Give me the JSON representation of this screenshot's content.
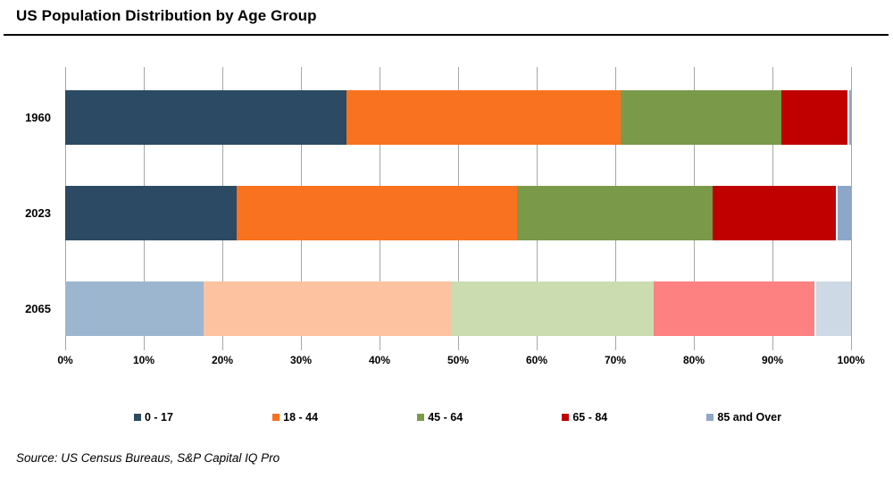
{
  "title": "US Population Distribution by Age Group",
  "source": "Source: US Census Bureaus, S&P Capital IQ Pro",
  "chart_data": {
    "type": "bar",
    "orientation": "horizontal",
    "stacked": true,
    "title": "US Population Distribution by Age Group",
    "categories": [
      "1960",
      "2023",
      "2065"
    ],
    "series": [
      {
        "name": "0 - 17",
        "values": [
          35.8,
          21.8,
          17.6
        ]
      },
      {
        "name": "18 - 44",
        "values": [
          34.9,
          35.7,
          31.5
        ]
      },
      {
        "name": "45 - 64",
        "values": [
          20.4,
          24.9,
          25.8
        ]
      },
      {
        "name": "65 - 84",
        "values": [
          8.4,
          15.7,
          20.4
        ]
      },
      {
        "name": "85 and Over",
        "values": [
          0.5,
          1.9,
          4.7
        ]
      }
    ],
    "legend": [
      "0 - 17",
      "18 - 44",
      "45 - 64",
      "65 - 84",
      "85 and Over"
    ],
    "legend_colors": [
      "#2C4A63",
      "#F8721F",
      "#7A9A4A",
      "#C00000",
      "#8DA7C9"
    ],
    "row_colors": [
      [
        "#2C4A63",
        "#F8721F",
        "#7A9A4A",
        "#C00000",
        "#8DA7C9"
      ],
      [
        "#2C4A63",
        "#F8721F",
        "#7A9A4A",
        "#C00000",
        "#8DA7C9"
      ],
      [
        "#9DB6D0",
        "#FDC2A0",
        "#CBDCB0",
        "#FD8181",
        "#CDD9E5"
      ]
    ],
    "x_ticks": [
      "0%",
      "10%",
      "20%",
      "30%",
      "40%",
      "50%",
      "60%",
      "70%",
      "80%",
      "90%",
      "100%"
    ],
    "xlim": [
      0,
      100
    ],
    "grid": true,
    "gridline_color": "#A6A6A6",
    "legend_position": "bottom"
  }
}
